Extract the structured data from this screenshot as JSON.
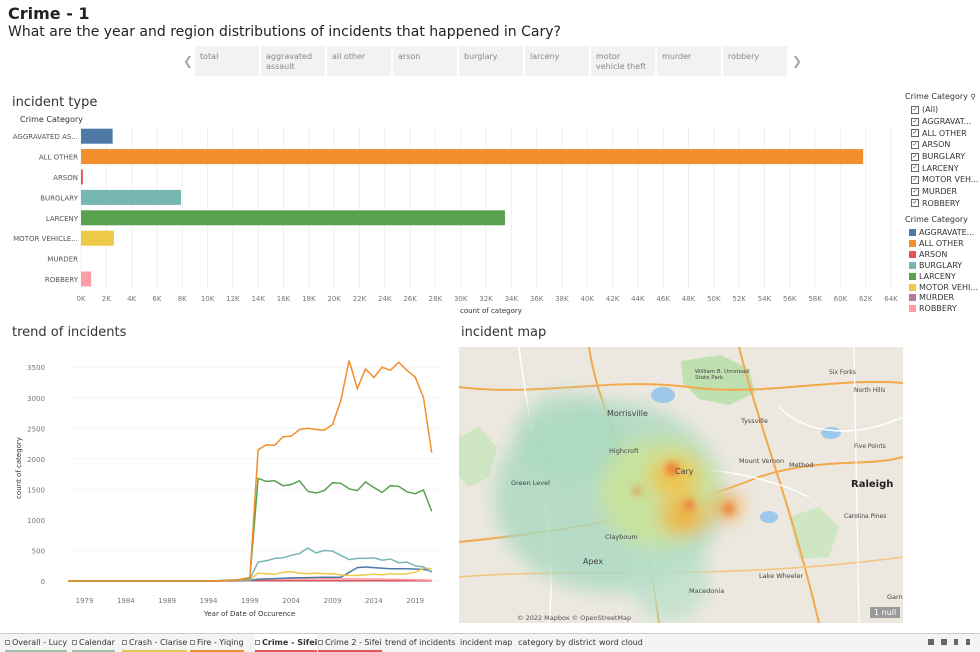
{
  "dashboard": {
    "title": "Crime - 1",
    "subtitle": "What are the year and region distributions of incidents that happened in Cary?"
  },
  "filter": {
    "buttons": [
      {
        "label": "total",
        "selected": true
      },
      {
        "label": "aggravated assault",
        "selected": false
      },
      {
        "label": "all other",
        "selected": false
      },
      {
        "label": "arson",
        "selected": false
      },
      {
        "label": "burglary",
        "selected": false
      },
      {
        "label": "larceny",
        "selected": false
      },
      {
        "label": "motor vehicle theft",
        "selected": false
      },
      {
        "label": "murder",
        "selected": false
      },
      {
        "label": "robbery",
        "selected": false
      }
    ],
    "prev_icon": "chevron-left-icon",
    "next_icon": "chevron-right-icon"
  },
  "legend_filter": {
    "title": "Crime Category",
    "items": [
      "(All)",
      "AGGRAVAT...",
      "ALL OTHER",
      "ARSON",
      "BURGLARY",
      "LARCENY",
      "MOTOR VEH...",
      "MURDER",
      "ROBBERY"
    ]
  },
  "legend_color": {
    "title": "Crime Category",
    "items": [
      {
        "label": "AGGRAVATE...",
        "color": "#4e79a7"
      },
      {
        "label": "ALL OTHER",
        "color": "#f28e2b"
      },
      {
        "label": "ARSON",
        "color": "#e15759"
      },
      {
        "label": "BURGLARY",
        "color": "#76b7b2"
      },
      {
        "label": "LARCENY",
        "color": "#59a14f"
      },
      {
        "label": "MOTOR VEHI...",
        "color": "#edc948"
      },
      {
        "label": "MURDER",
        "color": "#b07aa1"
      },
      {
        "label": "ROBBERY",
        "color": "#ff9da7"
      }
    ]
  },
  "sections": {
    "incident_type": "incident type",
    "trend": "trend of incidents",
    "map": "incident map"
  },
  "chart_data": [
    {
      "type": "bar",
      "orientation": "horizontal",
      "title": "incident type",
      "row_header": "Crime Category",
      "categories": [
        "AGGRAVATED AS...",
        "ALL OTHER",
        "ARSON",
        "BURGLARY",
        "LARCENY",
        "MOTOR VEHICLE...",
        "MURDER",
        "ROBBERY"
      ],
      "values": [
        2500,
        61800,
        150,
        7900,
        33500,
        2600,
        0,
        800
      ],
      "colors": [
        "#4e79a7",
        "#f28e2b",
        "#e15759",
        "#76b7b2",
        "#59a14f",
        "#edc948",
        "#b07aa1",
        "#ff9da7"
      ],
      "xlabel": "count of category",
      "xlim": [
        0,
        64000
      ],
      "xticks": [
        "0K",
        "2K",
        "4K",
        "6K",
        "8K",
        "10K",
        "12K",
        "14K",
        "16K",
        "18K",
        "20K",
        "22K",
        "24K",
        "26K",
        "28K",
        "30K",
        "32K",
        "34K",
        "36K",
        "38K",
        "40K",
        "42K",
        "44K",
        "46K",
        "48K",
        "50K",
        "52K",
        "54K",
        "56K",
        "58K",
        "60K",
        "62K",
        "64K"
      ],
      "grid": true
    },
    {
      "type": "line",
      "title": "trend of incidents",
      "xlabel": "Year of Date of Occurence",
      "ylabel": "count of category",
      "xlim": [
        1977,
        2022
      ],
      "ylim": [
        0,
        3700
      ],
      "xticks": [
        1979,
        1984,
        1989,
        1994,
        1999,
        2004,
        2009,
        2014,
        2019
      ],
      "yticks": [
        0,
        500,
        1000,
        1500,
        2000,
        2500,
        3000,
        3500
      ],
      "series": [
        {
          "category": "ALL OTHER",
          "color": "#f28e2b",
          "points": [
            [
              1977,
              0
            ],
            [
              1994,
              0
            ],
            [
              1997,
              10
            ],
            [
              1998,
              30
            ],
            [
              1999,
              60
            ],
            [
              2000,
              2150
            ],
            [
              2001,
              2230
            ],
            [
              2002,
              2220
            ],
            [
              2003,
              2360
            ],
            [
              2004,
              2370
            ],
            [
              2005,
              2480
            ],
            [
              2006,
              2500
            ],
            [
              2007,
              2480
            ],
            [
              2008,
              2470
            ],
            [
              2009,
              2560
            ],
            [
              2010,
              2950
            ],
            [
              2011,
              3610
            ],
            [
              2012,
              3150
            ],
            [
              2013,
              3470
            ],
            [
              2014,
              3330
            ],
            [
              2015,
              3500
            ],
            [
              2016,
              3450
            ],
            [
              2017,
              3580
            ],
            [
              2018,
              3450
            ],
            [
              2019,
              3340
            ],
            [
              2020,
              3000
            ],
            [
              2021,
              2100
            ]
          ]
        },
        {
          "category": "LARCENY",
          "color": "#59a14f",
          "points": [
            [
              1977,
              0
            ],
            [
              1994,
              0
            ],
            [
              1997,
              10
            ],
            [
              1998,
              30
            ],
            [
              1999,
              50
            ],
            [
              2000,
              1680
            ],
            [
              2001,
              1630
            ],
            [
              2002,
              1640
            ],
            [
              2003,
              1560
            ],
            [
              2004,
              1580
            ],
            [
              2005,
              1640
            ],
            [
              2006,
              1470
            ],
            [
              2007,
              1440
            ],
            [
              2008,
              1480
            ],
            [
              2009,
              1610
            ],
            [
              2010,
              1600
            ],
            [
              2011,
              1510
            ],
            [
              2012,
              1480
            ],
            [
              2013,
              1620
            ],
            [
              2014,
              1530
            ],
            [
              2015,
              1450
            ],
            [
              2016,
              1560
            ],
            [
              2017,
              1550
            ],
            [
              2018,
              1460
            ],
            [
              2019,
              1430
            ],
            [
              2020,
              1490
            ],
            [
              2021,
              1140
            ]
          ]
        },
        {
          "category": "BURGLARY",
          "color": "#76b7b2",
          "points": [
            [
              1977,
              0
            ],
            [
              1994,
              0
            ],
            [
              1999,
              30
            ],
            [
              2000,
              310
            ],
            [
              2001,
              330
            ],
            [
              2002,
              370
            ],
            [
              2003,
              380
            ],
            [
              2004,
              420
            ],
            [
              2005,
              450
            ],
            [
              2006,
              540
            ],
            [
              2007,
              460
            ],
            [
              2008,
              500
            ],
            [
              2009,
              490
            ],
            [
              2010,
              420
            ],
            [
              2011,
              350
            ],
            [
              2012,
              370
            ],
            [
              2013,
              370
            ],
            [
              2014,
              380
            ],
            [
              2015,
              340
            ],
            [
              2016,
              360
            ],
            [
              2017,
              300
            ],
            [
              2018,
              310
            ],
            [
              2019,
              250
            ],
            [
              2020,
              230
            ],
            [
              2021,
              140
            ]
          ]
        },
        {
          "category": "MOTOR VEHICLE THEFT",
          "color": "#edc948",
          "points": [
            [
              1977,
              0
            ],
            [
              1994,
              0
            ],
            [
              1999,
              20
            ],
            [
              2000,
              130
            ],
            [
              2001,
              120
            ],
            [
              2002,
              110
            ],
            [
              2003,
              140
            ],
            [
              2004,
              150
            ],
            [
              2005,
              130
            ],
            [
              2006,
              120
            ],
            [
              2007,
              130
            ],
            [
              2008,
              120
            ],
            [
              2009,
              120
            ],
            [
              2010,
              100
            ],
            [
              2011,
              90
            ],
            [
              2012,
              90
            ],
            [
              2013,
              100
            ],
            [
              2014,
              110
            ],
            [
              2015,
              100
            ],
            [
              2016,
              120
            ],
            [
              2017,
              110
            ],
            [
              2018,
              120
            ],
            [
              2019,
              140
            ],
            [
              2020,
              210
            ],
            [
              2021,
              200
            ]
          ]
        },
        {
          "category": "AGGRAVATED ASSAULT",
          "color": "#4e79a7",
          "points": [
            [
              1977,
              0
            ],
            [
              1994,
              0
            ],
            [
              1999,
              10
            ],
            [
              2000,
              30
            ],
            [
              2002,
              40
            ],
            [
              2004,
              50
            ],
            [
              2006,
              55
            ],
            [
              2008,
              60
            ],
            [
              2010,
              60
            ],
            [
              2012,
              220
            ],
            [
              2013,
              230
            ],
            [
              2014,
              220
            ],
            [
              2016,
              200
            ],
            [
              2018,
              200
            ],
            [
              2020,
              190
            ],
            [
              2021,
              160
            ]
          ]
        },
        {
          "category": "ROBBERY",
          "color": "#ff9da7",
          "points": [
            [
              1977,
              0
            ],
            [
              1994,
              0
            ],
            [
              1999,
              5
            ],
            [
              2000,
              30
            ],
            [
              2004,
              40
            ],
            [
              2008,
              40
            ],
            [
              2012,
              35
            ],
            [
              2016,
              30
            ],
            [
              2021,
              15
            ]
          ]
        },
        {
          "category": "ARSON",
          "color": "#e15759",
          "points": [
            [
              1977,
              0
            ],
            [
              1994,
              0
            ],
            [
              2000,
              8
            ],
            [
              2005,
              8
            ],
            [
              2010,
              6
            ],
            [
              2015,
              6
            ],
            [
              2021,
              4
            ]
          ]
        },
        {
          "category": "MURDER",
          "color": "#b07aa1",
          "points": [
            [
              1977,
              0
            ],
            [
              1994,
              0
            ],
            [
              2000,
              2
            ],
            [
              2010,
              2
            ],
            [
              2021,
              1
            ]
          ]
        }
      ]
    }
  ],
  "map": {
    "labels": [
      "Morrisville",
      "Cary",
      "Raleigh",
      "Apex",
      "Green Level",
      "Tyssville",
      "Mount Vernon",
      "Lake Wheeler",
      "Clayboum",
      "Method",
      "Highcroft",
      "Macedonia",
      "William B. Umstead State Park",
      "North Hills",
      "Five Points",
      "Carolina Pines",
      "Six Forks",
      "Garner"
    ],
    "attribution": "© 2022 Mapbox © OpenStreetMap",
    "null_badge": "1 null"
  },
  "tabs": [
    {
      "label": "Overall - Lucy",
      "color": "#9fc2a7",
      "icon": "dashboard-icon"
    },
    {
      "label": "Calendar",
      "color": "#9fc2a7",
      "icon": "dashboard-icon"
    },
    {
      "label": "Crash - Clarise",
      "color": "#e6c85a",
      "icon": "dashboard-icon"
    },
    {
      "label": "Fire - Yiqing",
      "color": "#f28e2b",
      "icon": "dashboard-icon"
    },
    {
      "label": "Crime - Sifei",
      "color": "#e15759",
      "icon": "dashboard-icon",
      "active": true
    },
    {
      "label": "Crime 2 - Sifei",
      "color": "#e15759",
      "icon": "dashboard-icon"
    },
    {
      "label": "trend of incidents",
      "color": "",
      "icon": ""
    },
    {
      "label": "incident map",
      "color": "",
      "icon": ""
    },
    {
      "label": "category by district",
      "color": "",
      "icon": ""
    },
    {
      "label": "word cloud",
      "color": "",
      "icon": ""
    }
  ]
}
